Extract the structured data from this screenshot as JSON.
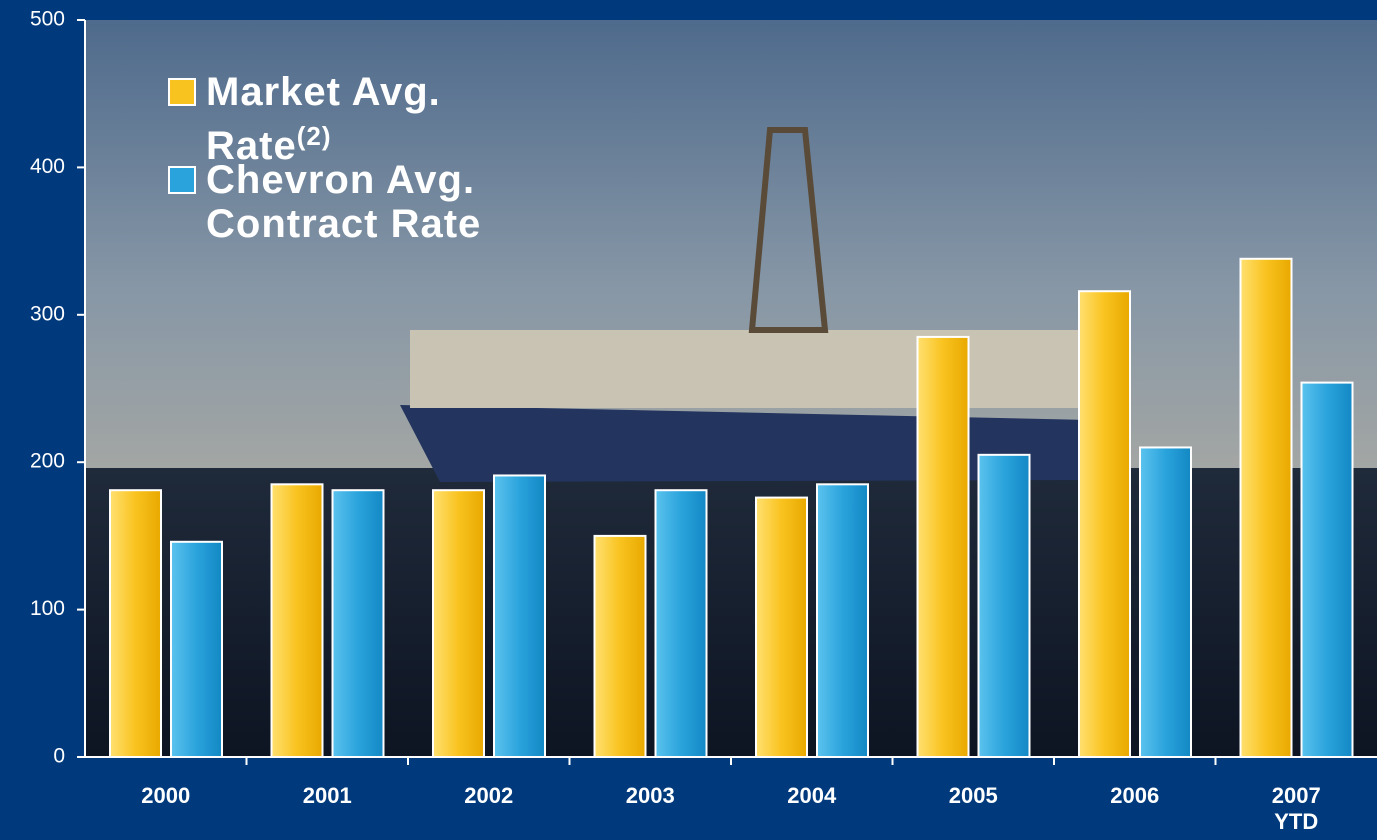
{
  "chart_data": {
    "type": "bar",
    "categories": [
      "2000",
      "2001",
      "2002",
      "2003",
      "2004",
      "2005",
      "2006",
      "2007\nYTD"
    ],
    "series": [
      {
        "name": "Market Avg. Rate",
        "color": "#f9c31f",
        "values": [
          181,
          185,
          181,
          150,
          176,
          285,
          316,
          338
        ]
      },
      {
        "name": "Chevron Avg. Contract Rate",
        "color": "#2aa3dc",
        "values": [
          146,
          181,
          191,
          181,
          185,
          205,
          210,
          254
        ]
      }
    ],
    "legend_note": "(2)",
    "ylim": [
      0,
      500
    ],
    "yticks": [
      0,
      100,
      200,
      300,
      400,
      500
    ],
    "grid": false,
    "legend": "upper left"
  }
}
